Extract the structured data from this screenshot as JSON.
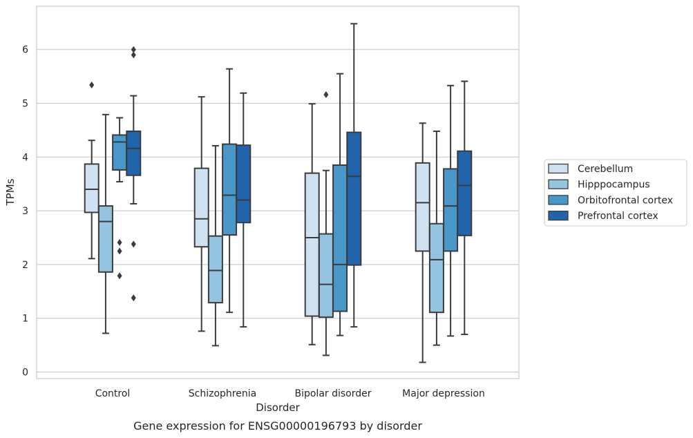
{
  "chart_data": {
    "type": "box",
    "title": "",
    "caption": "Gene expression for ENSG00000196793 by disorder",
    "xlabel": "Disorder",
    "ylabel": "TPMs",
    "ylim": [
      -0.12,
      6.8
    ],
    "yticks": [
      0,
      1,
      2,
      3,
      4,
      5,
      6
    ],
    "grid": "horizontal",
    "legend_position": "right",
    "categories": [
      "Control",
      "Schizophrenia",
      "Bipolar disorder",
      "Major depression"
    ],
    "series": [
      {
        "name": "Cerebellum",
        "color": "#d0e1f2",
        "boxes": [
          {
            "whisker_low": 2.11,
            "q1": 2.97,
            "median": 3.4,
            "q3": 3.87,
            "whisker_high": 4.31,
            "outliers": [
              5.34
            ]
          },
          {
            "whisker_low": 0.76,
            "q1": 2.33,
            "median": 2.85,
            "q3": 3.79,
            "whisker_high": 5.12,
            "outliers": []
          },
          {
            "whisker_low": 0.51,
            "q1": 1.04,
            "median": 2.5,
            "q3": 3.7,
            "whisker_high": 4.99,
            "outliers": []
          },
          {
            "whisker_low": 0.18,
            "q1": 2.25,
            "median": 3.15,
            "q3": 3.89,
            "whisker_high": 4.63,
            "outliers": []
          }
        ]
      },
      {
        "name": "Hipppocampus",
        "color": "#94c4df",
        "boxes": [
          {
            "whisker_low": 0.72,
            "q1": 1.86,
            "median": 2.8,
            "q3": 3.09,
            "whisker_high": 4.79,
            "outliers": []
          },
          {
            "whisker_low": 0.49,
            "q1": 1.29,
            "median": 1.89,
            "q3": 2.53,
            "whisker_high": 4.21,
            "outliers": []
          },
          {
            "whisker_low": 0.31,
            "q1": 1.02,
            "median": 1.63,
            "q3": 2.57,
            "whisker_high": 3.75,
            "outliers": [
              5.16
            ]
          },
          {
            "whisker_low": 0.5,
            "q1": 1.11,
            "median": 2.09,
            "q3": 2.76,
            "whisker_high": 4.48,
            "outliers": []
          }
        ]
      },
      {
        "name": "Orbitofrontal cortex",
        "color": "#4a98c9",
        "boxes": [
          {
            "whisker_low": 3.54,
            "q1": 3.76,
            "median": 4.28,
            "q3": 4.41,
            "whisker_high": 4.73,
            "outliers": [
              2.41,
              2.25,
              1.79
            ]
          },
          {
            "whisker_low": 1.11,
            "q1": 2.55,
            "median": 3.29,
            "q3": 4.24,
            "whisker_high": 5.64,
            "outliers": []
          },
          {
            "whisker_low": 0.68,
            "q1": 1.13,
            "median": 2.0,
            "q3": 3.85,
            "whisker_high": 5.55,
            "outliers": []
          },
          {
            "whisker_low": 0.67,
            "q1": 2.25,
            "median": 3.09,
            "q3": 3.78,
            "whisker_high": 5.33,
            "outliers": []
          }
        ]
      },
      {
        "name": "Prefrontal cortex",
        "color": "#2164ab",
        "boxes": [
          {
            "whisker_low": 3.13,
            "q1": 3.66,
            "median": 4.16,
            "q3": 4.48,
            "whisker_high": 5.14,
            "outliers": [
              6.0,
              5.9,
              2.38,
              1.38
            ]
          },
          {
            "whisker_low": 0.84,
            "q1": 2.78,
            "median": 3.2,
            "q3": 4.22,
            "whisker_high": 5.19,
            "outliers": []
          },
          {
            "whisker_low": 0.84,
            "q1": 1.99,
            "median": 3.64,
            "q3": 4.46,
            "whisker_high": 6.48,
            "outliers": []
          },
          {
            "whisker_low": 0.7,
            "q1": 2.54,
            "median": 3.47,
            "q3": 4.11,
            "whisker_high": 5.41,
            "outliers": []
          }
        ]
      }
    ]
  }
}
